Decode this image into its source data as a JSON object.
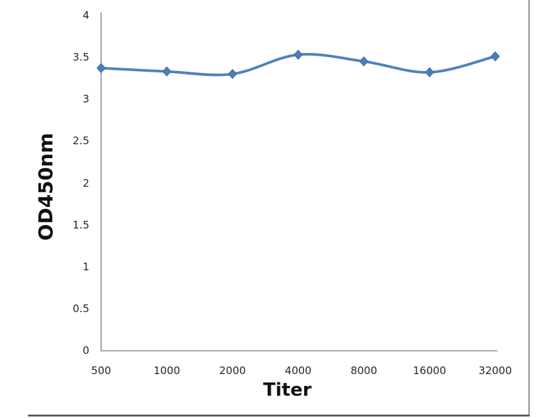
{
  "figure": {
    "background": "#ffffff",
    "right_border_color": "#8c8c8c",
    "bottom_border_color": "#4d4d4d"
  },
  "chart_data": {
    "type": "line",
    "title": "",
    "xlabel": "Titer",
    "ylabel": "OD450nm",
    "categories": [
      "500",
      "1000",
      "2000",
      "4000",
      "8000",
      "16000",
      "32000"
    ],
    "series": [
      {
        "name": "OD450nm",
        "values": [
          3.37,
          3.33,
          3.3,
          3.53,
          3.45,
          3.32,
          3.51
        ],
        "color": "#4f81bd",
        "marker_color": "#4a7ebb",
        "marker_edge_color": "#3d6da8",
        "marker": "diamond",
        "smooth": true
      }
    ],
    "ylim": [
      0,
      4
    ],
    "ytick_step": 0.5,
    "yticks": [
      "0",
      "0.5",
      "1",
      "1.5",
      "2",
      "2.5",
      "3",
      "3.5",
      "4"
    ],
    "grid": false,
    "legend": "none",
    "axis_color": "#9b9b9b",
    "tick_label_color": "#262626"
  }
}
